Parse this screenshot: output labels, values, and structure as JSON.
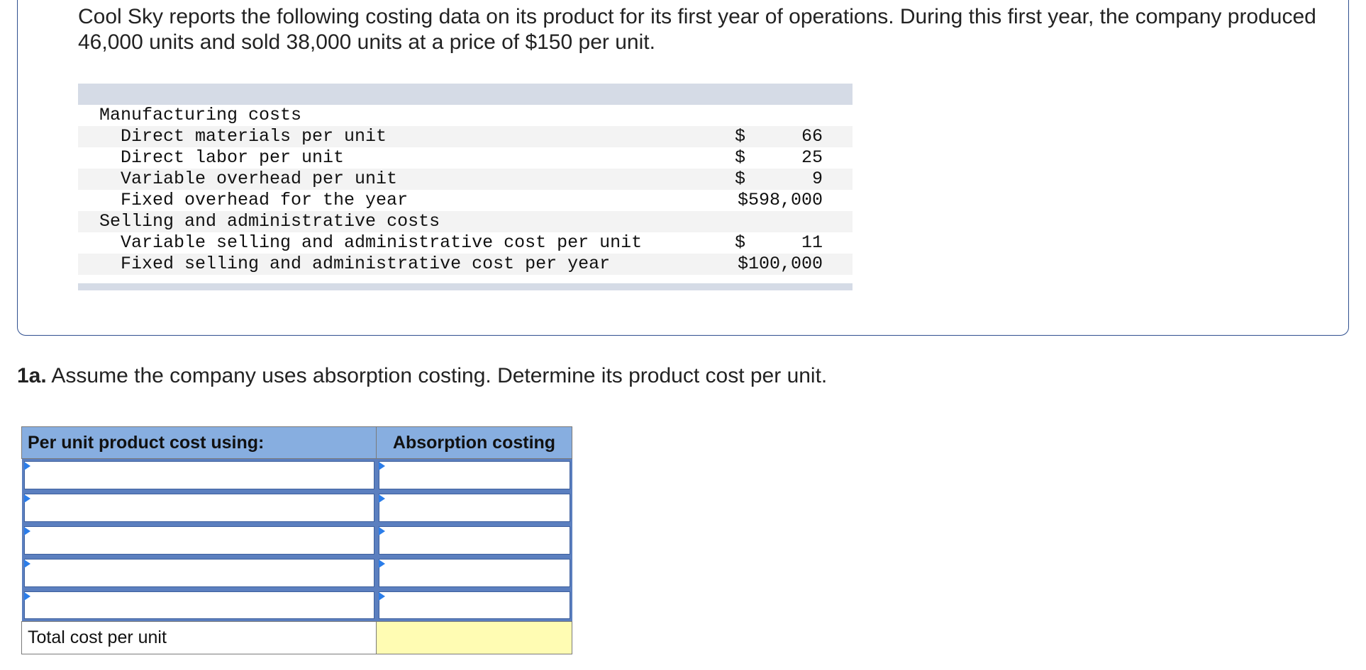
{
  "intro_text": "Cool Sky reports the following costing data on its product for its first year of operations. During this first year, the company produced 46,000 units and sold 38,000 units at a price of $150 per unit.",
  "cost_data": {
    "manufacturing_heading": "Manufacturing costs",
    "selling_heading": "Selling and administrative costs",
    "items": [
      {
        "label": "Direct materials per unit",
        "currency": "$",
        "amount": "66"
      },
      {
        "label": "Direct labor per unit",
        "currency": "$",
        "amount": "25"
      },
      {
        "label": "Variable overhead per unit",
        "currency": "$",
        "amount": "9"
      },
      {
        "label": "Fixed overhead for the year",
        "currency": "",
        "amount": "$598,000"
      },
      {
        "label": "Variable selling and administrative cost per unit",
        "currency": "$",
        "amount": "11"
      },
      {
        "label": "Fixed selling and administrative cost per year",
        "currency": "",
        "amount": "$100,000"
      }
    ]
  },
  "question": {
    "number": "1a.",
    "text": " Assume the company uses absorption costing. Determine its product cost per unit."
  },
  "answer_table": {
    "header_col1": "Per unit product cost using:",
    "header_col2": "Absorption costing",
    "input_rows": 5,
    "total_label": "Total cost per unit",
    "total_value": ""
  },
  "colors": {
    "header_bg": "#87aee0",
    "input_border": "#5b7fbf",
    "total_bg": "#fffcb3",
    "box_border": "#2f4f8f"
  }
}
